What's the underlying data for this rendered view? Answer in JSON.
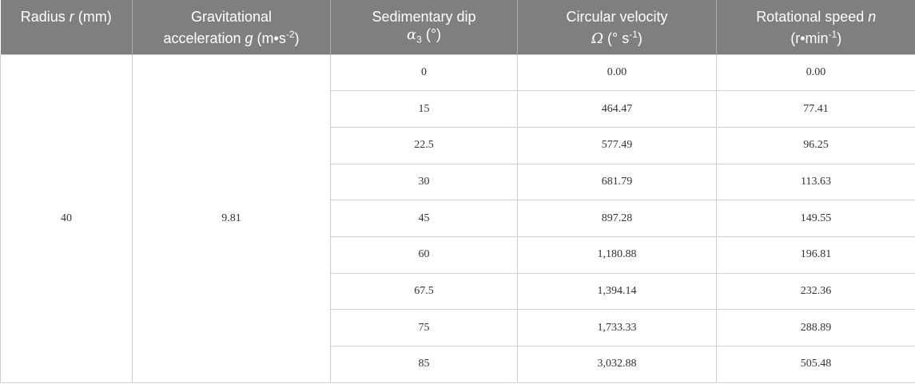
{
  "table": {
    "header": [
      [
        "Radius ",
        "r",
        " (mm)"
      ],
      [
        "Gravitational",
        "acceleration ",
        "g",
        " (m•s",
        "-2",
        ")"
      ],
      [
        "Sedimentary dip",
        "α",
        "3",
        " (°)"
      ],
      [
        "Circular velocity",
        "Ω",
        " (° s",
        "-1",
        ")"
      ],
      [
        "Rotational speed ",
        "n",
        "(r•min",
        "-1",
        ")"
      ]
    ],
    "radius": "40",
    "gravity": "9.81",
    "rows": [
      [
        "0",
        "0.00",
        "0.00"
      ],
      [
        "15",
        "464.47",
        "77.41"
      ],
      [
        "22.5",
        "577.49",
        "96.25"
      ],
      [
        "30",
        "681.79",
        "113.63"
      ],
      [
        "45",
        "897.28",
        "149.55"
      ],
      [
        "60",
        "1,180.88",
        "196.81"
      ],
      [
        "67.5",
        "1,394.14",
        "232.36"
      ],
      [
        "75",
        "1,733.33",
        "288.89"
      ],
      [
        "85",
        "3,032.88",
        "505.48"
      ]
    ]
  }
}
